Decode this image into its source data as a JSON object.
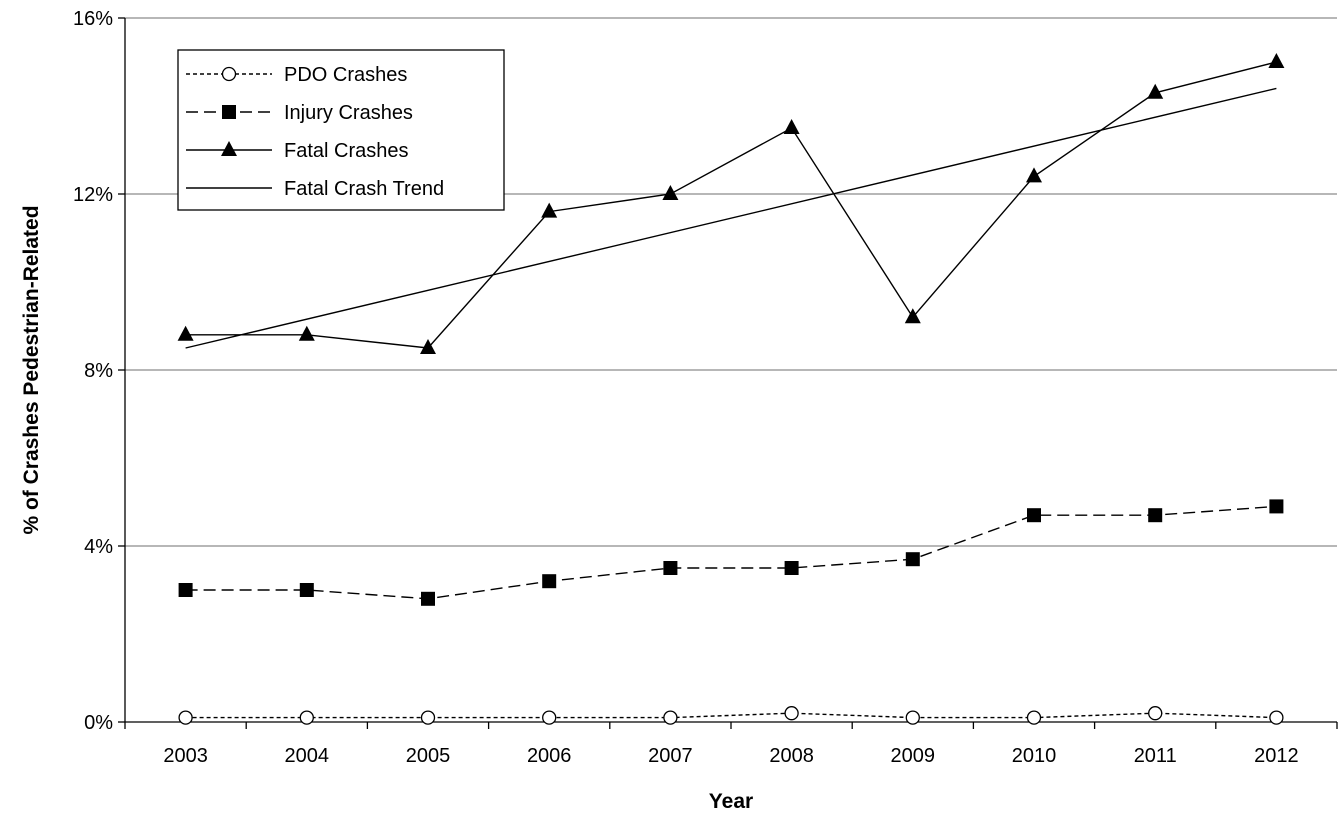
{
  "chart_data": {
    "type": "line",
    "title": "",
    "xlabel": "Year",
    "ylabel": "% of Crashes  Pedestrian-Related",
    "ylim": [
      0,
      16
    ],
    "y_ticks": [
      0,
      4,
      8,
      12,
      16
    ],
    "y_tick_format": "{v}%",
    "grid": "horizontal",
    "legend_position": "top-left",
    "categories": [
      "2003",
      "2004",
      "2005",
      "2006",
      "2007",
      "2008",
      "2009",
      "2010",
      "2011",
      "2012"
    ],
    "series": [
      {
        "name": "PDO Crashes",
        "values": [
          0.1,
          0.1,
          0.1,
          0.1,
          0.1,
          0.2,
          0.1,
          0.1,
          0.2,
          0.1
        ],
        "marker": "circle-open",
        "line": "dotted",
        "color": "#000000"
      },
      {
        "name": "Injury Crashes",
        "values": [
          3.0,
          3.0,
          2.8,
          3.2,
          3.5,
          3.5,
          3.7,
          4.7,
          4.7,
          4.9
        ],
        "marker": "square-filled",
        "line": "dashed",
        "color": "#000000"
      },
      {
        "name": "Fatal Crashes",
        "values": [
          8.8,
          8.8,
          8.5,
          11.6,
          12.0,
          13.5,
          9.2,
          12.4,
          14.3,
          15.0
        ],
        "marker": "triangle-filled",
        "line": "solid",
        "color": "#000000"
      },
      {
        "name": "Fatal Crash Trend",
        "trend_start": 8.5,
        "trend_end": 14.4,
        "marker": "none",
        "line": "solid",
        "color": "#000000"
      }
    ]
  }
}
